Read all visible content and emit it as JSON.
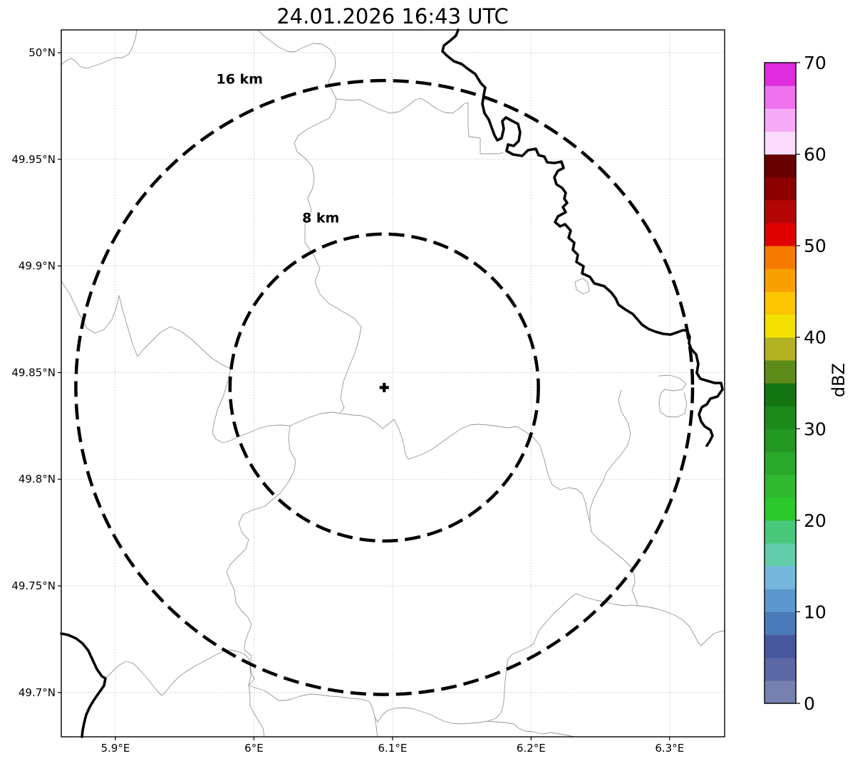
{
  "title": "24.01.2026 16:43 UTC",
  "map": {
    "projection": "lat-lon",
    "extent": {
      "lon_min": 5.861,
      "lon_max": 6.34,
      "lat_min": 49.679,
      "lat_max": 50.011
    },
    "x_ticks": [
      {
        "value": 5.9,
        "label": "5.9°E"
      },
      {
        "value": 6.0,
        "label": "6°E"
      },
      {
        "value": 6.1,
        "label": "6.1°E"
      },
      {
        "value": 6.2,
        "label": "6.2°E"
      },
      {
        "value": 6.3,
        "label": "6.3°E"
      }
    ],
    "y_ticks": [
      {
        "value": 50.0,
        "label": "50°N"
      },
      {
        "value": 49.95,
        "label": "49.95°N"
      },
      {
        "value": 49.9,
        "label": "49.9°N"
      },
      {
        "value": 49.85,
        "label": "49.85°N"
      },
      {
        "value": 49.8,
        "label": "49.8°N"
      },
      {
        "value": 49.75,
        "label": "49.75°N"
      },
      {
        "value": 49.7,
        "label": "49.7°N"
      }
    ],
    "radar_site": {
      "lon": 6.094,
      "lat": 49.843,
      "marker": "plus"
    },
    "range_rings": [
      {
        "radius_km": 16,
        "label": "16 km"
      },
      {
        "radius_km": 8,
        "label": "8 km"
      }
    ],
    "colors": {
      "grid": "#b8b8b8",
      "admin_border": "#969696",
      "river": "#000000",
      "range_ring": "#000000",
      "background": "#ffffff"
    }
  },
  "colorbar": {
    "label": "dBZ",
    "min": 0,
    "max": 70,
    "band_step_dbz": 2.5,
    "ticks": [
      {
        "value": 0,
        "label": "0"
      },
      {
        "value": 10,
        "label": "10"
      },
      {
        "value": 20,
        "label": "20"
      },
      {
        "value": 30,
        "label": "30"
      },
      {
        "value": 40,
        "label": "40"
      },
      {
        "value": 50,
        "label": "50"
      },
      {
        "value": 60,
        "label": "60"
      },
      {
        "value": 70,
        "label": "70"
      }
    ],
    "band_colors_low_to_high": [
      "#7781b0",
      "#5d68a6",
      "#47589e",
      "#4a7ab8",
      "#5c97cd",
      "#76b7de",
      "#63ccaa",
      "#49c87c",
      "#2bc82b",
      "#30b830",
      "#2aa82a",
      "#239823",
      "#1b8a1b",
      "#127512",
      "#5e8c1a",
      "#b2b224",
      "#f2e100",
      "#fbc500",
      "#f9a000",
      "#f47a00",
      "#e00000",
      "#b40505",
      "#8c0000",
      "#670000",
      "#fcdcfc",
      "#f7aaf7",
      "#ef72ef",
      "#de2cde"
    ]
  },
  "chart_data": {
    "type": "heatmap",
    "title": "24.01.2026 16:43 UTC",
    "value_label": "dBZ",
    "value_range": [
      0,
      70
    ],
    "x_range_deg_e": [
      5.861,
      6.34
    ],
    "y_range_deg_n": [
      49.679,
      50.011
    ],
    "radar_center": {
      "lon": 6.094,
      "lat": 49.843
    },
    "range_rings_km": [
      16,
      8
    ],
    "echo_values_visible": []
  }
}
